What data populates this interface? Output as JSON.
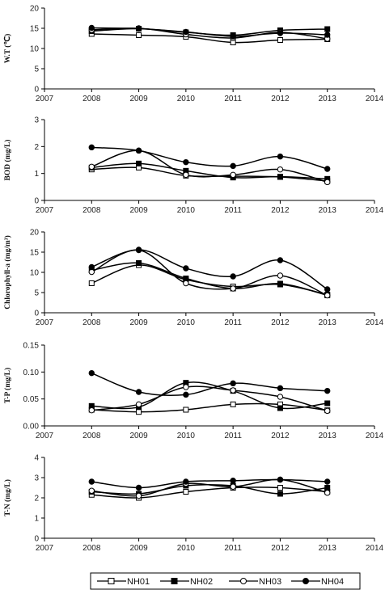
{
  "chart_data": [
    {
      "type": "line",
      "ylabel": "W.T (℃)",
      "x": [
        2008,
        2009,
        2010,
        2011,
        2012,
        2013
      ],
      "xlim": [
        2007,
        2014
      ],
      "ylim": [
        0,
        20
      ],
      "xticks": [
        "2007",
        "2008",
        "2009",
        "2010",
        "2011",
        "2012",
        "2013",
        "2014"
      ],
      "yticks": [
        "0",
        "5",
        "10",
        "15",
        "20"
      ],
      "grid": false,
      "series": [
        {
          "name": "NH01",
          "values": [
            13.6,
            13.3,
            12.9,
            11.5,
            12.1,
            12.3
          ]
        },
        {
          "name": "NH02",
          "values": [
            14.3,
            14.9,
            14.0,
            13.3,
            14.5,
            14.8
          ]
        },
        {
          "name": "NH03",
          "values": [
            14.6,
            15.0,
            13.5,
            12.6,
            14.0,
            12.4
          ]
        },
        {
          "name": "NH04",
          "values": [
            15.1,
            14.9,
            14.1,
            13.0,
            13.8,
            13.4
          ]
        }
      ]
    },
    {
      "type": "line",
      "ylabel": "BOD (mg/L)",
      "x": [
        2008,
        2009,
        2010,
        2011,
        2012,
        2013
      ],
      "xlim": [
        2007,
        2014
      ],
      "ylim": [
        0,
        3
      ],
      "xticks": [
        "2007",
        "2008",
        "2009",
        "2010",
        "2011",
        "2012",
        "2013",
        "2014"
      ],
      "yticks": [
        "0",
        "1",
        "2",
        "3"
      ],
      "grid": false,
      "series": [
        {
          "name": "NH01",
          "values": [
            1.15,
            1.22,
            0.92,
            0.9,
            0.87,
            0.72
          ]
        },
        {
          "name": "NH02",
          "values": [
            1.22,
            1.37,
            1.1,
            0.85,
            0.88,
            0.8
          ]
        },
        {
          "name": "NH03",
          "values": [
            1.25,
            1.85,
            0.95,
            0.95,
            1.15,
            0.68
          ]
        },
        {
          "name": "NH04",
          "values": [
            1.97,
            1.85,
            1.42,
            1.28,
            1.63,
            1.17
          ]
        }
      ]
    },
    {
      "type": "line",
      "ylabel": "Chlorophyll-a (mg/m³)",
      "x": [
        2008,
        2009,
        2010,
        2011,
        2012,
        2013
      ],
      "xlim": [
        2007,
        2014
      ],
      "ylim": [
        0,
        20
      ],
      "xticks": [
        "2007",
        "2008",
        "2009",
        "2010",
        "2011",
        "2012",
        "2013",
        "2014"
      ],
      "yticks": [
        "0",
        "5",
        "10",
        "15",
        "20"
      ],
      "grid": false,
      "series": [
        {
          "name": "NH01",
          "values": [
            7.3,
            11.8,
            8.2,
            6.5,
            7.0,
            4.5
          ]
        },
        {
          "name": "NH02",
          "values": [
            10.5,
            12.3,
            8.5,
            6.0,
            7.2,
            4.3
          ]
        },
        {
          "name": "NH03",
          "values": [
            10.1,
            15.5,
            7.3,
            6.0,
            9.2,
            4.3
          ]
        },
        {
          "name": "NH04",
          "values": [
            11.3,
            15.6,
            11.0,
            9.0,
            13.0,
            5.8
          ]
        }
      ]
    },
    {
      "type": "line",
      "ylabel": "T-P (mg/L)",
      "x": [
        2008,
        2009,
        2010,
        2011,
        2012,
        2013
      ],
      "xlim": [
        2007,
        2014
      ],
      "ylim": [
        0,
        0.15
      ],
      "xticks": [
        "2007",
        "2008",
        "2009",
        "2010",
        "2011",
        "2012",
        "2013",
        "2014"
      ],
      "yticks": [
        "0.00",
        "0.05",
        "0.10",
        "0.15"
      ],
      "grid": false,
      "series": [
        {
          "name": "NH01",
          "values": [
            0.03,
            0.026,
            0.03,
            0.04,
            0.04,
            0.029
          ]
        },
        {
          "name": "NH02",
          "values": [
            0.037,
            0.035,
            0.08,
            0.065,
            0.033,
            0.042
          ]
        },
        {
          "name": "NH03",
          "values": [
            0.029,
            0.04,
            0.072,
            0.066,
            0.054,
            0.028
          ]
        },
        {
          "name": "NH04",
          "values": [
            0.098,
            0.063,
            0.058,
            0.079,
            0.07,
            0.065
          ]
        }
      ]
    },
    {
      "type": "line",
      "ylabel": "T-N (mg/L)",
      "x": [
        2008,
        2009,
        2010,
        2011,
        2012,
        2013
      ],
      "xlim": [
        2007,
        2014
      ],
      "ylim": [
        0,
        4
      ],
      "xticks": [
        "2007",
        "2008",
        "2009",
        "2010",
        "2011",
        "2012",
        "2013",
        "2014"
      ],
      "yticks": [
        "0",
        "1",
        "2",
        "3",
        "4"
      ],
      "grid": false,
      "series": [
        {
          "name": "NH01",
          "values": [
            2.15,
            2.0,
            2.3,
            2.5,
            2.5,
            2.3
          ]
        },
        {
          "name": "NH02",
          "values": [
            2.3,
            2.2,
            2.6,
            2.6,
            2.2,
            2.5
          ]
        },
        {
          "name": "NH03",
          "values": [
            2.35,
            2.1,
            2.7,
            2.55,
            2.9,
            2.25
          ]
        },
        {
          "name": "NH04",
          "values": [
            2.8,
            2.5,
            2.8,
            2.85,
            2.9,
            2.8
          ]
        }
      ]
    }
  ],
  "legend": {
    "placement": "bottom",
    "items": [
      {
        "label": "NH01",
        "marker": "open-square"
      },
      {
        "label": "NH02",
        "marker": "filled-square"
      },
      {
        "label": "NH03",
        "marker": "open-circle"
      },
      {
        "label": "NH04",
        "marker": "filled-circle"
      }
    ]
  }
}
